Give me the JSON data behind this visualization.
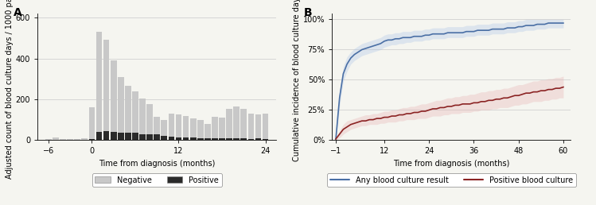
{
  "panel_A": {
    "title": "A",
    "xlabel": "Time from diagnosis (months)",
    "ylabel": "Adjusted count of blood culture days / 1000 patients",
    "xlim": [
      -7.5,
      25.5
    ],
    "ylim": [
      0,
      620
    ],
    "yticks": [
      0,
      200,
      400,
      600
    ],
    "xticks": [
      -6,
      0,
      12,
      24
    ],
    "bar_color_neg": "#c8c8c8",
    "bar_color_pos": "#2a2a2a",
    "legend_neg": "Negative",
    "legend_pos": "Positive",
    "bar_width": 0.85,
    "months": [
      -6,
      -5,
      -4,
      -3,
      -2,
      -1,
      0,
      1,
      2,
      3,
      4,
      5,
      6,
      7,
      8,
      9,
      10,
      11,
      12,
      13,
      14,
      15,
      16,
      17,
      18,
      19,
      20,
      21,
      22,
      23,
      24
    ],
    "neg_values": [
      5,
      15,
      5,
      5,
      5,
      8,
      160,
      530,
      490,
      390,
      310,
      265,
      240,
      205,
      175,
      115,
      100,
      130,
      125,
      120,
      105,
      100,
      80,
      115,
      110,
      155,
      165,
      155,
      130,
      125,
      130
    ],
    "pos_values": [
      0,
      0,
      0,
      0,
      0,
      0,
      5,
      40,
      45,
      40,
      35,
      38,
      35,
      30,
      30,
      28,
      20,
      18,
      15,
      15,
      12,
      10,
      8,
      10,
      8,
      8,
      8,
      8,
      5,
      8,
      5
    ]
  },
  "panel_B": {
    "title": "B",
    "xlabel": "Time from diagnosis (months)",
    "ylabel": "Cumulative incidence of blood culture days",
    "xlim": [
      -2,
      62
    ],
    "ylim": [
      0,
      1.05
    ],
    "ytick_vals": [
      0,
      0.25,
      0.5,
      0.75,
      1.0
    ],
    "ytick_labels": [
      "0%",
      "25%",
      "50%",
      "75%",
      "100%"
    ],
    "xticks": [
      -1,
      12,
      24,
      36,
      48,
      60
    ],
    "blue_color": "#4a6fa5",
    "blue_fill": "#aec6e8",
    "red_color": "#8b2323",
    "red_fill": "#e8b4b4",
    "legend_blue": "Any blood culture result",
    "legend_red": "Positive blood culture",
    "blue_x": [
      -1,
      0,
      1,
      2,
      3,
      4,
      5,
      6,
      7,
      8,
      9,
      10,
      11,
      12,
      13,
      14,
      15,
      16,
      17,
      18,
      19,
      20,
      21,
      22,
      23,
      24,
      25,
      26,
      27,
      28,
      29,
      30,
      31,
      32,
      33,
      34,
      35,
      36,
      37,
      38,
      39,
      40,
      41,
      42,
      43,
      44,
      45,
      46,
      47,
      48,
      49,
      50,
      51,
      52,
      53,
      54,
      55,
      56,
      57,
      58,
      59,
      60
    ],
    "blue_y": [
      0.01,
      0.35,
      0.55,
      0.63,
      0.68,
      0.71,
      0.73,
      0.75,
      0.76,
      0.77,
      0.78,
      0.79,
      0.8,
      0.82,
      0.83,
      0.83,
      0.84,
      0.84,
      0.85,
      0.85,
      0.85,
      0.86,
      0.86,
      0.86,
      0.87,
      0.87,
      0.88,
      0.88,
      0.88,
      0.88,
      0.89,
      0.89,
      0.89,
      0.89,
      0.89,
      0.9,
      0.9,
      0.9,
      0.91,
      0.91,
      0.91,
      0.91,
      0.92,
      0.92,
      0.92,
      0.92,
      0.93,
      0.93,
      0.93,
      0.94,
      0.94,
      0.95,
      0.95,
      0.95,
      0.96,
      0.96,
      0.96,
      0.97,
      0.97,
      0.97,
      0.97,
      0.97
    ],
    "blue_lo": [
      0.0,
      0.28,
      0.49,
      0.57,
      0.63,
      0.66,
      0.68,
      0.7,
      0.71,
      0.72,
      0.73,
      0.74,
      0.75,
      0.77,
      0.78,
      0.79,
      0.79,
      0.8,
      0.8,
      0.81,
      0.81,
      0.82,
      0.82,
      0.82,
      0.83,
      0.83,
      0.84,
      0.84,
      0.84,
      0.84,
      0.85,
      0.85,
      0.85,
      0.85,
      0.85,
      0.86,
      0.86,
      0.86,
      0.87,
      0.87,
      0.87,
      0.87,
      0.88,
      0.88,
      0.88,
      0.88,
      0.89,
      0.89,
      0.89,
      0.9,
      0.9,
      0.91,
      0.91,
      0.91,
      0.92,
      0.92,
      0.92,
      0.93,
      0.93,
      0.93,
      0.93,
      0.93
    ],
    "blue_hi": [
      0.03,
      0.42,
      0.61,
      0.69,
      0.73,
      0.76,
      0.78,
      0.8,
      0.81,
      0.82,
      0.83,
      0.84,
      0.85,
      0.87,
      0.88,
      0.88,
      0.89,
      0.89,
      0.9,
      0.9,
      0.9,
      0.91,
      0.91,
      0.91,
      0.92,
      0.92,
      0.93,
      0.93,
      0.93,
      0.93,
      0.94,
      0.94,
      0.94,
      0.94,
      0.94,
      0.95,
      0.95,
      0.95,
      0.96,
      0.96,
      0.96,
      0.96,
      0.97,
      0.97,
      0.97,
      0.97,
      0.98,
      0.98,
      0.98,
      0.99,
      0.99,
      1.0,
      1.0,
      1.0,
      1.0,
      1.0,
      1.0,
      1.0,
      1.0,
      1.0,
      1.0,
      1.0
    ],
    "red_x": [
      -1,
      0,
      1,
      2,
      3,
      4,
      5,
      6,
      7,
      8,
      9,
      10,
      11,
      12,
      13,
      14,
      15,
      16,
      17,
      18,
      19,
      20,
      21,
      22,
      23,
      24,
      25,
      26,
      27,
      28,
      29,
      30,
      31,
      32,
      33,
      34,
      35,
      36,
      37,
      38,
      39,
      40,
      41,
      42,
      43,
      44,
      45,
      46,
      47,
      48,
      49,
      50,
      51,
      52,
      53,
      54,
      55,
      56,
      57,
      58,
      59,
      60
    ],
    "red_y": [
      0.01,
      0.05,
      0.09,
      0.11,
      0.13,
      0.14,
      0.15,
      0.16,
      0.16,
      0.17,
      0.17,
      0.18,
      0.18,
      0.19,
      0.19,
      0.2,
      0.2,
      0.21,
      0.21,
      0.22,
      0.22,
      0.23,
      0.23,
      0.24,
      0.24,
      0.25,
      0.26,
      0.26,
      0.27,
      0.27,
      0.28,
      0.28,
      0.29,
      0.29,
      0.3,
      0.3,
      0.3,
      0.31,
      0.31,
      0.32,
      0.32,
      0.33,
      0.33,
      0.34,
      0.34,
      0.35,
      0.35,
      0.36,
      0.37,
      0.37,
      0.38,
      0.39,
      0.39,
      0.4,
      0.4,
      0.41,
      0.41,
      0.42,
      0.42,
      0.43,
      0.43,
      0.44
    ],
    "red_lo": [
      0.0,
      0.02,
      0.05,
      0.07,
      0.09,
      0.1,
      0.11,
      0.12,
      0.12,
      0.13,
      0.13,
      0.13,
      0.14,
      0.14,
      0.15,
      0.15,
      0.15,
      0.16,
      0.16,
      0.17,
      0.17,
      0.17,
      0.18,
      0.18,
      0.18,
      0.19,
      0.2,
      0.2,
      0.2,
      0.21,
      0.21,
      0.22,
      0.22,
      0.22,
      0.23,
      0.23,
      0.23,
      0.24,
      0.24,
      0.25,
      0.25,
      0.25,
      0.26,
      0.26,
      0.27,
      0.27,
      0.27,
      0.28,
      0.29,
      0.29,
      0.3,
      0.3,
      0.31,
      0.32,
      0.32,
      0.32,
      0.33,
      0.33,
      0.34,
      0.34,
      0.35,
      0.35
    ],
    "red_hi": [
      0.02,
      0.08,
      0.13,
      0.16,
      0.17,
      0.18,
      0.19,
      0.2,
      0.21,
      0.21,
      0.22,
      0.22,
      0.23,
      0.24,
      0.24,
      0.25,
      0.25,
      0.26,
      0.27,
      0.27,
      0.28,
      0.28,
      0.29,
      0.3,
      0.3,
      0.31,
      0.32,
      0.33,
      0.33,
      0.34,
      0.35,
      0.35,
      0.36,
      0.36,
      0.37,
      0.37,
      0.38,
      0.38,
      0.39,
      0.4,
      0.4,
      0.41,
      0.41,
      0.42,
      0.42,
      0.43,
      0.43,
      0.44,
      0.45,
      0.46,
      0.46,
      0.47,
      0.48,
      0.49,
      0.49,
      0.5,
      0.5,
      0.51,
      0.51,
      0.52,
      0.52,
      0.53
    ]
  },
  "bg_color": "#f5f5f0",
  "grid_color": "#d0d0d0",
  "font_size": 7
}
